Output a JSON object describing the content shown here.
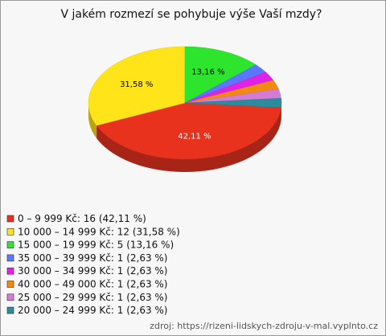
{
  "chart_data": {
    "type": "pie",
    "title": "V jakém rozmezí se pohybuje výše Vaší mzdy?",
    "categories": [
      "0 – 9 999 Kč: 16 (42,11 %)",
      "10 000 – 14 999 Kč: 12 (31,58 %)",
      "15 000 – 19 999 Kč: 5 (13,16 %)",
      "35 000 – 39 999 Kč: 1 (2,63 %)",
      "30 000 – 34 999 Kč: 1 (2,63 %)",
      "40 000 – 49 000 Kč: 1 (2,63 %)",
      "25 000 – 29 999 Kč: 1 (2,63 %)",
      "20 000 – 24 999 Kč: 1 (2,63 %)"
    ],
    "values": [
      42.11,
      31.58,
      13.16,
      2.63,
      2.63,
      2.63,
      2.63,
      2.63
    ],
    "value_labels": [
      "42,11 %",
      "31,58 %",
      "13,16 %",
      null,
      null,
      null,
      null,
      null
    ],
    "colors": [
      "#e8321e",
      "#ffe41a",
      "#2ee52e",
      "#5a78ff",
      "#e022e6",
      "#f28a12",
      "#d47cd4",
      "#2a8c9c"
    ],
    "source": "zdroj: https://rizeni-lidskych-zdroju-v-mal.vyplnto.cz"
  }
}
